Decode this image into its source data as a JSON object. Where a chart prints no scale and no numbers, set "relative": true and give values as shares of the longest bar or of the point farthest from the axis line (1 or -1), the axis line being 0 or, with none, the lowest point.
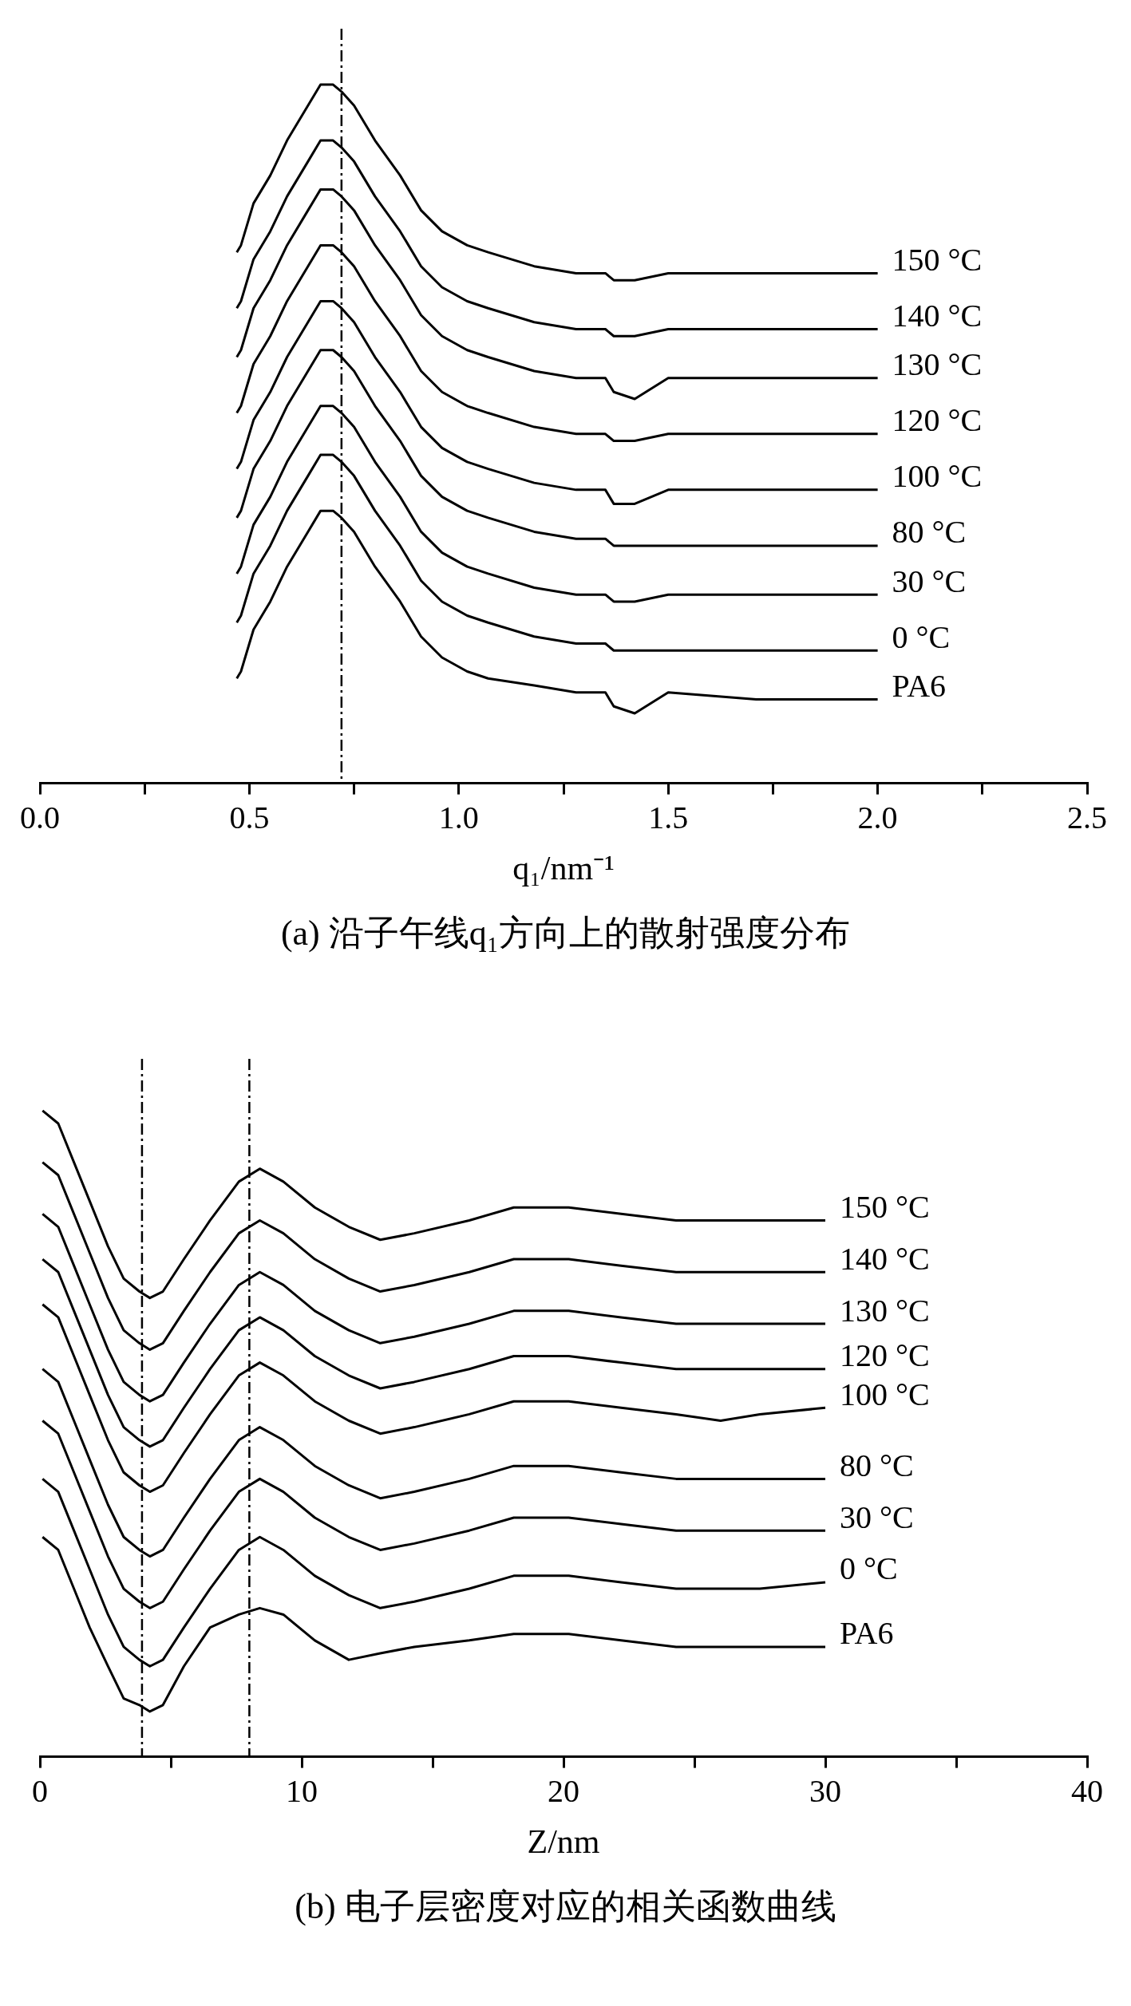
{
  "chart_data": [
    {
      "type": "line",
      "title": "(a) 沿子午线q₁方向上的散射强度分布",
      "xlabel": "q₁/nm⁻¹",
      "relative": true,
      "legend": false,
      "marker": "none",
      "line_style": "solid",
      "tick_labels": "x",
      "x": [
        0.47,
        0.48,
        0.51,
        0.52,
        0.55,
        0.59,
        0.64,
        0.67,
        0.7,
        0.72,
        0.75,
        0.8,
        0.86,
        0.91,
        0.96,
        1.02,
        1.07,
        1.18,
        1.28,
        1.35,
        1.37,
        1.42,
        1.5,
        1.71,
        2.0
      ],
      "xlim": [
        0,
        2.5
      ],
      "xticks": [
        {
          "value": 0,
          "label": "0.0"
        },
        {
          "value": 0.25,
          "label": null
        },
        0.5,
        {
          "value": 0.75,
          "label": null
        },
        {
          "value": 1,
          "label": "1.0"
        },
        {
          "value": 1.25,
          "label": null
        },
        1.5,
        {
          "value": 1.75,
          "label": null
        },
        {
          "value": 2,
          "label": "2.0"
        },
        {
          "value": 2.25,
          "label": null
        },
        2.5
      ],
      "ref_lines": [
        {
          "axis": "x",
          "value": 0.72,
          "color": "#000000",
          "line_style": "dashed"
        }
      ],
      "series": [
        {
          "name": "150 °C",
          "color": "#000000",
          "values": [
            0.76,
            0.77,
            0.83,
            0.84,
            0.87,
            0.92,
            0.97,
            1.0,
            1.0,
            0.99,
            0.97,
            0.92,
            0.87,
            0.82,
            0.79,
            0.77,
            0.76,
            0.74,
            0.73,
            0.73,
            0.72,
            0.72,
            0.73,
            0.73,
            0.73
          ]
        },
        {
          "name": "140 °C",
          "color": "#000000",
          "values": [
            0.68,
            0.69,
            0.75,
            0.76,
            0.79,
            0.84,
            0.89,
            0.92,
            0.92,
            0.91,
            0.89,
            0.84,
            0.79,
            0.74,
            0.71,
            0.69,
            0.68,
            0.66,
            0.65,
            0.65,
            0.64,
            0.64,
            0.65,
            0.65,
            0.65
          ]
        },
        {
          "name": "130 °C",
          "color": "#000000",
          "values": [
            0.61,
            0.62,
            0.68,
            0.69,
            0.72,
            0.77,
            0.82,
            0.85,
            0.85,
            0.84,
            0.82,
            0.77,
            0.72,
            0.67,
            0.64,
            0.62,
            0.61,
            0.59,
            0.58,
            0.58,
            0.56,
            0.55,
            0.58,
            0.58,
            0.58
          ]
        },
        {
          "name": "120 °C",
          "color": "#000000",
          "values": [
            0.53,
            0.54,
            0.6,
            0.61,
            0.64,
            0.69,
            0.74,
            0.77,
            0.77,
            0.76,
            0.74,
            0.69,
            0.64,
            0.59,
            0.56,
            0.54,
            0.53,
            0.51,
            0.5,
            0.5,
            0.49,
            0.49,
            0.5,
            0.5,
            0.5
          ]
        },
        {
          "name": "100 °C",
          "color": "#000000",
          "values": [
            0.45,
            0.46,
            0.52,
            0.53,
            0.56,
            0.61,
            0.66,
            0.69,
            0.69,
            0.68,
            0.66,
            0.61,
            0.56,
            0.51,
            0.48,
            0.46,
            0.45,
            0.43,
            0.42,
            0.42,
            0.4,
            0.4,
            0.42,
            0.42,
            0.42
          ]
        },
        {
          "name": "80 °C",
          "color": "#000000",
          "values": [
            0.38,
            0.39,
            0.45,
            0.46,
            0.49,
            0.54,
            0.59,
            0.62,
            0.62,
            0.61,
            0.59,
            0.54,
            0.49,
            0.44,
            0.41,
            0.39,
            0.38,
            0.36,
            0.35,
            0.35,
            0.34,
            0.34,
            0.34,
            0.34,
            0.34
          ]
        },
        {
          "name": "30 °C",
          "color": "#000000",
          "values": [
            0.3,
            0.31,
            0.37,
            0.38,
            0.41,
            0.46,
            0.51,
            0.54,
            0.54,
            0.53,
            0.51,
            0.46,
            0.41,
            0.36,
            0.33,
            0.31,
            0.3,
            0.28,
            0.27,
            0.27,
            0.26,
            0.26,
            0.27,
            0.27,
            0.27
          ]
        },
        {
          "name": "0 °C",
          "color": "#000000",
          "values": [
            0.23,
            0.24,
            0.3,
            0.31,
            0.34,
            0.39,
            0.44,
            0.47,
            0.47,
            0.46,
            0.44,
            0.39,
            0.34,
            0.29,
            0.26,
            0.24,
            0.23,
            0.21,
            0.2,
            0.2,
            0.19,
            0.19,
            0.19,
            0.19,
            0.19
          ]
        },
        {
          "name": "PA6",
          "color": "#000000",
          "values": [
            0.15,
            0.16,
            0.22,
            0.23,
            0.26,
            0.31,
            0.36,
            0.39,
            0.39,
            0.38,
            0.36,
            0.31,
            0.26,
            0.21,
            0.18,
            0.16,
            0.15,
            0.14,
            0.13,
            0.13,
            0.11,
            0.1,
            0.13,
            0.12,
            0.12
          ]
        }
      ]
    },
    {
      "type": "line",
      "title": "(b) 电子层密度对应的相关函数曲线",
      "xlabel": "Z/nm",
      "relative": true,
      "legend": false,
      "marker": "none",
      "line_style": "solid",
      "tick_labels": "x",
      "x": [
        0.1,
        0.7,
        1.3,
        1.9,
        2.6,
        3.2,
        3.8,
        4.2,
        4.7,
        5.5,
        6.5,
        7.6,
        8.4,
        9.3,
        10.5,
        11.8,
        13.0,
        14.3,
        16.4,
        18.1,
        19.3,
        20.2,
        22.2,
        24.3,
        26.0,
        27.5,
        30
      ],
      "xlim": [
        0,
        40
      ],
      "xticks": [
        0,
        {
          "value": 5,
          "label": null
        },
        10,
        {
          "value": 15,
          "label": null
        },
        20,
        {
          "value": 25,
          "label": null
        },
        30,
        {
          "value": 35,
          "label": null
        },
        40
      ],
      "ref_lines": [
        {
          "axis": "x",
          "value": 3.9,
          "color": "#000000",
          "line_style": "dashed"
        },
        {
          "axis": "x",
          "value": 8.0,
          "color": "#000000",
          "line_style": "dashed"
        }
      ],
      "series": [
        {
          "name": "150 °C",
          "color": "#000000",
          "values": [
            1.0,
            0.98,
            0.92,
            0.86,
            0.79,
            0.74,
            0.72,
            0.71,
            0.72,
            0.77,
            0.83,
            0.89,
            0.91,
            0.89,
            0.85,
            0.82,
            0.8,
            0.81,
            0.83,
            0.85,
            0.85,
            0.85,
            0.84,
            0.83,
            0.83,
            0.83,
            0.83
          ]
        },
        {
          "name": "140 °C",
          "color": "#000000",
          "values": [
            0.92,
            0.9,
            0.84,
            0.78,
            0.71,
            0.66,
            0.64,
            0.63,
            0.64,
            0.69,
            0.75,
            0.81,
            0.83,
            0.81,
            0.77,
            0.74,
            0.72,
            0.73,
            0.75,
            0.77,
            0.77,
            0.77,
            0.76,
            0.75,
            0.75,
            0.75,
            0.75
          ]
        },
        {
          "name": "130 °C",
          "color": "#000000",
          "values": [
            0.84,
            0.82,
            0.76,
            0.7,
            0.63,
            0.58,
            0.56,
            0.55,
            0.56,
            0.61,
            0.67,
            0.73,
            0.75,
            0.73,
            0.69,
            0.66,
            0.64,
            0.65,
            0.67,
            0.69,
            0.69,
            0.69,
            0.68,
            0.67,
            0.67,
            0.67,
            0.67
          ]
        },
        {
          "name": "120 °C",
          "color": "#000000",
          "values": [
            0.77,
            0.75,
            0.69,
            0.63,
            0.56,
            0.51,
            0.49,
            0.48,
            0.49,
            0.54,
            0.6,
            0.66,
            0.68,
            0.66,
            0.62,
            0.59,
            0.57,
            0.58,
            0.6,
            0.62,
            0.62,
            0.62,
            0.61,
            0.6,
            0.6,
            0.6,
            0.6
          ]
        },
        {
          "name": "100 °C",
          "color": "#000000",
          "values": [
            0.7,
            0.68,
            0.62,
            0.56,
            0.49,
            0.44,
            0.42,
            0.41,
            0.42,
            0.47,
            0.53,
            0.59,
            0.61,
            0.59,
            0.55,
            0.52,
            0.5,
            0.51,
            0.53,
            0.55,
            0.55,
            0.55,
            0.54,
            0.53,
            0.52,
            0.53,
            0.54
          ]
        },
        {
          "name": "80 °C",
          "color": "#000000",
          "values": [
            0.6,
            0.58,
            0.52,
            0.46,
            0.39,
            0.34,
            0.32,
            0.31,
            0.32,
            0.37,
            0.43,
            0.49,
            0.51,
            0.49,
            0.45,
            0.42,
            0.4,
            0.41,
            0.43,
            0.45,
            0.45,
            0.45,
            0.44,
            0.43,
            0.43,
            0.43,
            0.43
          ]
        },
        {
          "name": "30 °C",
          "color": "#000000",
          "values": [
            0.52,
            0.5,
            0.44,
            0.38,
            0.31,
            0.26,
            0.24,
            0.23,
            0.24,
            0.29,
            0.35,
            0.41,
            0.43,
            0.41,
            0.37,
            0.34,
            0.32,
            0.33,
            0.35,
            0.37,
            0.37,
            0.37,
            0.36,
            0.35,
            0.35,
            0.35,
            0.35
          ]
        },
        {
          "name": "0 °C",
          "color": "#000000",
          "values": [
            0.43,
            0.41,
            0.35,
            0.29,
            0.22,
            0.17,
            0.15,
            0.14,
            0.15,
            0.2,
            0.26,
            0.32,
            0.34,
            0.32,
            0.28,
            0.25,
            0.23,
            0.24,
            0.26,
            0.28,
            0.28,
            0.28,
            0.27,
            0.26,
            0.26,
            0.26,
            0.27
          ]
        },
        {
          "name": "PA6",
          "color": "#000000",
          "values": [
            0.34,
            0.32,
            0.26,
            0.2,
            0.14,
            0.09,
            0.08,
            0.07,
            0.08,
            0.14,
            0.2,
            0.22,
            0.23,
            0.22,
            0.18,
            0.15,
            0.16,
            0.17,
            0.18,
            0.19,
            0.19,
            0.19,
            0.18,
            0.17,
            0.17,
            0.17,
            0.17
          ]
        }
      ]
    }
  ]
}
